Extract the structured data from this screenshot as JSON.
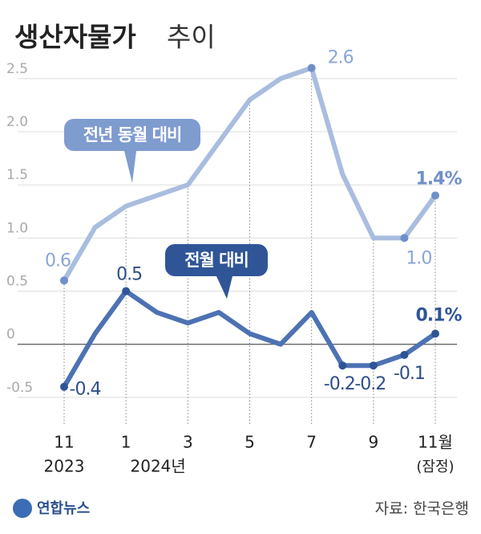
{
  "chart_data": {
    "type": "line",
    "title": "생산자물가",
    "subtitle": "추이",
    "categories": [
      "11",
      null,
      "1",
      null,
      "3",
      null,
      "5",
      null,
      "7",
      null,
      "9",
      null,
      "11월"
    ],
    "x_sublabels": [
      "2023",
      null,
      "2024년",
      null,
      null,
      null,
      null,
      null,
      null,
      null,
      null,
      null,
      "(잠정)"
    ],
    "series": [
      {
        "name": "전년 동월 대비",
        "color": "#a9bddf",
        "values": [
          0.6,
          1.1,
          1.3,
          1.4,
          1.5,
          1.9,
          2.3,
          2.5,
          2.6,
          1.6,
          1.0,
          1.0,
          1.4
        ],
        "value_labels": [
          "0.6",
          null,
          null,
          null,
          null,
          null,
          null,
          null,
          "2.6",
          null,
          null,
          "1.0",
          "1.4%"
        ]
      },
      {
        "name": "전월 대비",
        "color": "#4d72b3",
        "values": [
          -0.4,
          0.1,
          0.5,
          0.3,
          0.2,
          0.3,
          0.1,
          0.0,
          0.3,
          -0.2,
          -0.2,
          -0.1,
          0.1
        ],
        "value_labels": [
          "-0.4",
          null,
          "0.5",
          null,
          null,
          null,
          null,
          null,
          null,
          "-0.2",
          "-0.2",
          "-0.1",
          "0.1%"
        ]
      }
    ],
    "ylim": [
      -0.75,
      2.65
    ],
    "yticks": [
      -0.5,
      0,
      0.5,
      {
        "value": 1.0,
        "label": "1.0"
      },
      1.5,
      {
        "value": 2.0,
        "label": "2.0"
      },
      2.5
    ],
    "grid": true,
    "source": "자료: 한국은행",
    "logo": "연합뉴스"
  }
}
